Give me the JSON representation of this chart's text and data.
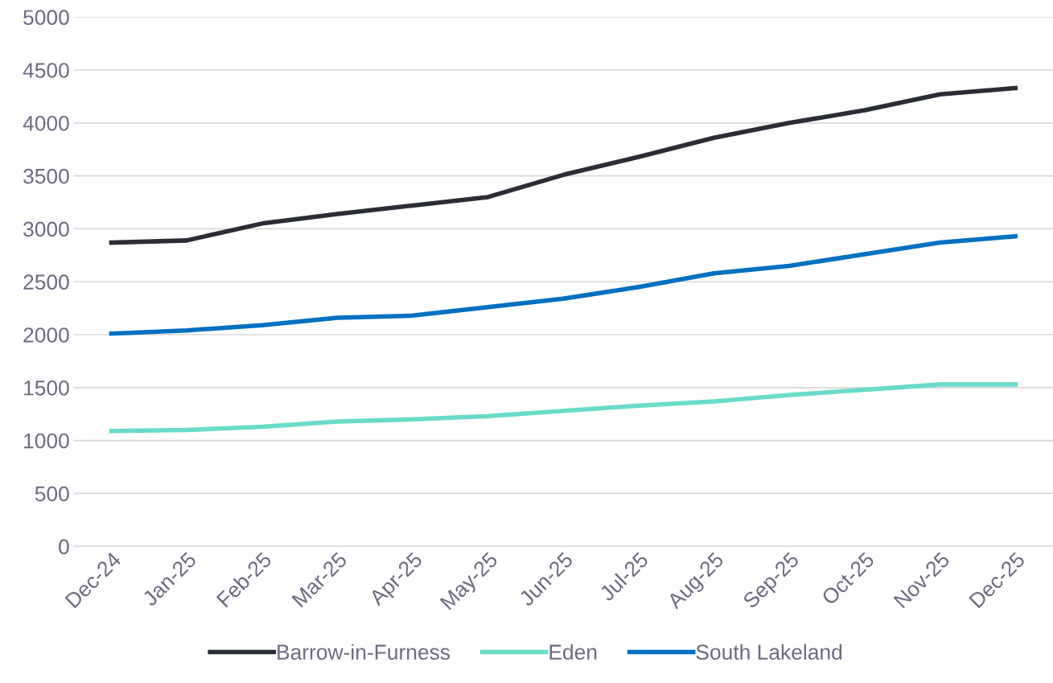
{
  "chart_data": {
    "type": "line",
    "categories": [
      "Dec-24",
      "Jan-25",
      "Feb-25",
      "Mar-25",
      "Apr-25",
      "May-25",
      "Jun-25",
      "Jul-25",
      "Aug-25",
      "Sep-25",
      "Oct-25",
      "Nov-25",
      "Dec-25"
    ],
    "series": [
      {
        "name": "Barrow-in-Furness",
        "color": "#2b2d36",
        "values": [
          2870,
          2890,
          3050,
          3140,
          3220,
          3300,
          3510,
          3680,
          3860,
          4000,
          4120,
          4270,
          4330
        ]
      },
      {
        "name": "Eden",
        "color": "#6adbc8",
        "values": [
          1090,
          1100,
          1130,
          1180,
          1200,
          1230,
          1280,
          1330,
          1370,
          1430,
          1480,
          1530,
          1530
        ]
      },
      {
        "name": "South Lakeland",
        "color": "#0070c0",
        "values": [
          2010,
          2040,
          2090,
          2160,
          2180,
          2260,
          2340,
          2450,
          2580,
          2650,
          2760,
          2870,
          2930
        ]
      }
    ],
    "ylim": [
      0,
      5000
    ],
    "yticks": [
      0,
      500,
      1000,
      1500,
      2000,
      2500,
      3000,
      3500,
      4000,
      4500,
      5000
    ],
    "grid": "y",
    "legend": "bottom",
    "marker": "none",
    "line_style": "solid"
  }
}
